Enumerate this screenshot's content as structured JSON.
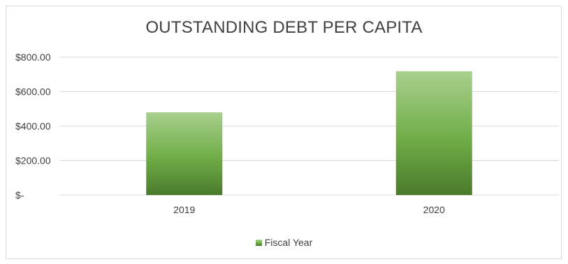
{
  "chart_data": {
    "type": "bar",
    "title": "OUTSTANDING DEBT PER CAPITA",
    "xlabel": "",
    "ylabel": "",
    "categories": [
      "2019",
      "2020"
    ],
    "series": [
      {
        "name": "Fiscal Year",
        "values": [
          480,
          718
        ]
      }
    ],
    "ylim": [
      0,
      800
    ],
    "y_ticks": [
      0,
      200,
      400,
      600,
      800
    ],
    "y_tick_labels": [
      "$-",
      "$200.00",
      "$400.00",
      "$600.00",
      "$800.00"
    ],
    "grid": true,
    "legend": "bottom",
    "colors": {
      "bar_top": "#a9d08e",
      "bar_mid": "#70ad47",
      "bar_bottom": "#4a7a2c",
      "grid": "#d9d9d9",
      "text": "#404040"
    }
  }
}
